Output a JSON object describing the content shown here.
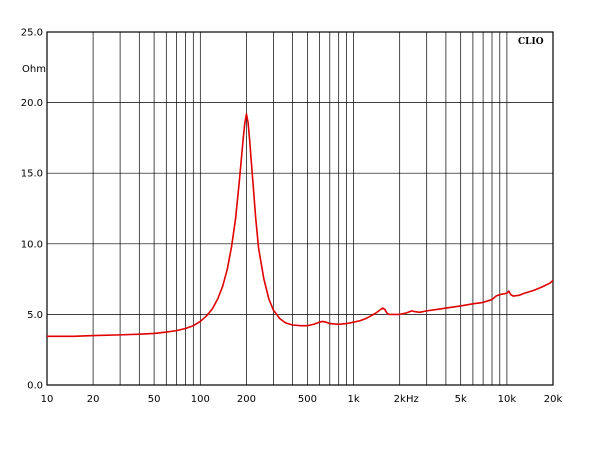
{
  "chart_data": {
    "type": "line",
    "brand": "CLIO",
    "xscale": "log",
    "xlim": [
      10,
      20000
    ],
    "ylim": [
      0,
      25
    ],
    "y_unit": "Ohm",
    "x_unit": "Hz",
    "grid": true,
    "x_ticks": [
      {
        "value": 10,
        "label": "10"
      },
      {
        "value": 20,
        "label": "20"
      },
      {
        "value": 50,
        "label": "50"
      },
      {
        "value": 100,
        "label": "100"
      },
      {
        "value": 200,
        "label": "200"
      },
      {
        "value": 500,
        "label": "500"
      },
      {
        "value": 1000,
        "label": "1k"
      },
      {
        "value": 2000,
        "label": "2k"
      },
      {
        "value": 5000,
        "label": "5k"
      },
      {
        "value": 10000,
        "label": "10k"
      },
      {
        "value": 20000,
        "label": "20k"
      }
    ],
    "y_ticks": [
      {
        "value": 0,
        "label": "0.0"
      },
      {
        "value": 5,
        "label": "5.0"
      },
      {
        "value": 10,
        "label": "10.0"
      },
      {
        "value": 15,
        "label": "15.0"
      },
      {
        "value": 20,
        "label": "20.0"
      },
      {
        "value": 25,
        "label": "25.0"
      }
    ],
    "series": [
      {
        "color": "#e00000",
        "points": [
          [
            10,
            3.45
          ],
          [
            15,
            3.45
          ],
          [
            20,
            3.5
          ],
          [
            30,
            3.55
          ],
          [
            40,
            3.6
          ],
          [
            50,
            3.65
          ],
          [
            60,
            3.75
          ],
          [
            70,
            3.85
          ],
          [
            80,
            4.0
          ],
          [
            90,
            4.2
          ],
          [
            100,
            4.5
          ],
          [
            110,
            4.9
          ],
          [
            120,
            5.4
          ],
          [
            130,
            6.1
          ],
          [
            140,
            7.0
          ],
          [
            150,
            8.2
          ],
          [
            160,
            9.8
          ],
          [
            170,
            11.8
          ],
          [
            180,
            14.5
          ],
          [
            190,
            17.3
          ],
          [
            195,
            18.5
          ],
          [
            200,
            19.2
          ],
          [
            205,
            18.6
          ],
          [
            210,
            17.3
          ],
          [
            220,
            14.5
          ],
          [
            230,
            11.8
          ],
          [
            240,
            9.7
          ],
          [
            260,
            7.5
          ],
          [
            280,
            6.1
          ],
          [
            300,
            5.3
          ],
          [
            330,
            4.7
          ],
          [
            360,
            4.4
          ],
          [
            400,
            4.25
          ],
          [
            450,
            4.2
          ],
          [
            500,
            4.2
          ],
          [
            550,
            4.3
          ],
          [
            600,
            4.45
          ],
          [
            630,
            4.5
          ],
          [
            660,
            4.45
          ],
          [
            700,
            4.35
          ],
          [
            800,
            4.3
          ],
          [
            900,
            4.35
          ],
          [
            1000,
            4.45
          ],
          [
            1100,
            4.55
          ],
          [
            1200,
            4.7
          ],
          [
            1300,
            4.9
          ],
          [
            1400,
            5.1
          ],
          [
            1500,
            5.35
          ],
          [
            1550,
            5.45
          ],
          [
            1600,
            5.35
          ],
          [
            1650,
            5.1
          ],
          [
            1700,
            5.0
          ],
          [
            1800,
            5.0
          ],
          [
            2000,
            5.0
          ],
          [
            2200,
            5.1
          ],
          [
            2400,
            5.25
          ],
          [
            2500,
            5.2
          ],
          [
            2700,
            5.15
          ],
          [
            3000,
            5.25
          ],
          [
            3500,
            5.35
          ],
          [
            4000,
            5.45
          ],
          [
            5000,
            5.6
          ],
          [
            6000,
            5.75
          ],
          [
            7000,
            5.85
          ],
          [
            8000,
            6.05
          ],
          [
            8500,
            6.3
          ],
          [
            9000,
            6.4
          ],
          [
            10000,
            6.5
          ],
          [
            10300,
            6.65
          ],
          [
            10600,
            6.4
          ],
          [
            11000,
            6.3
          ],
          [
            12000,
            6.35
          ],
          [
            13000,
            6.5
          ],
          [
            15000,
            6.7
          ],
          [
            17000,
            6.95
          ],
          [
            19000,
            7.2
          ],
          [
            20000,
            7.4
          ]
        ]
      }
    ]
  }
}
